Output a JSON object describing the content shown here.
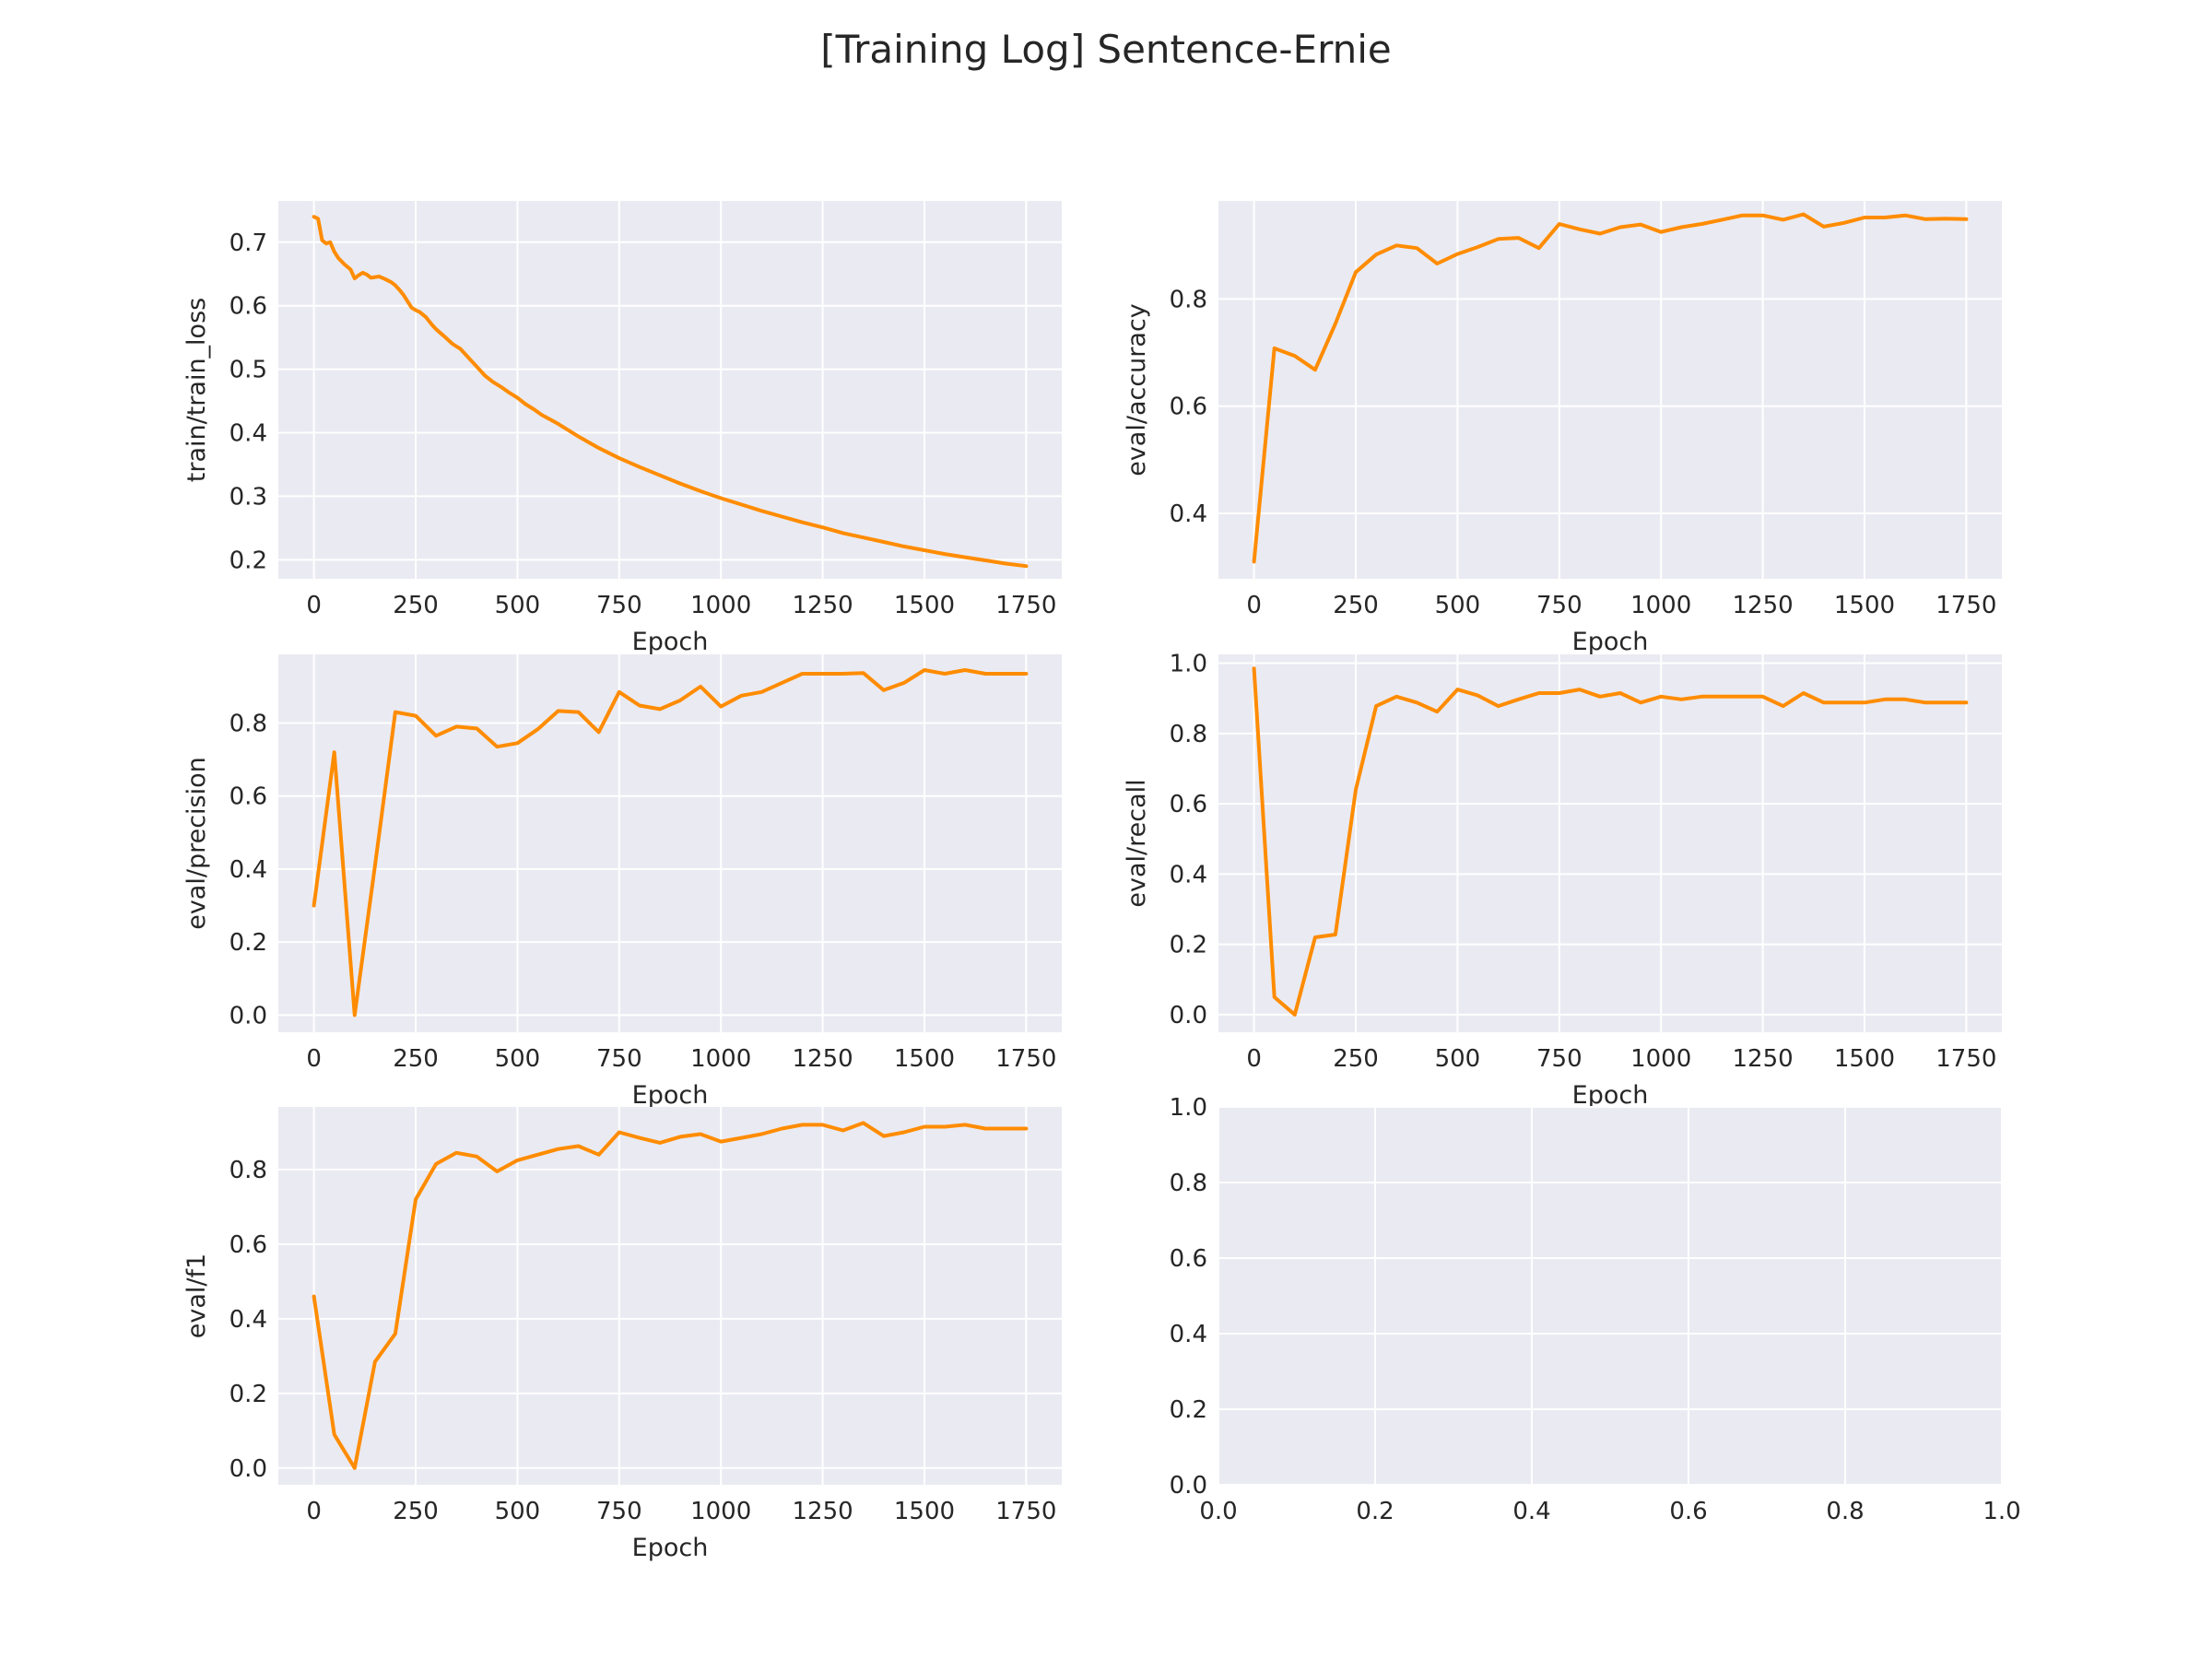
{
  "figure": {
    "title": "[Training Log] Sentence-Ernie"
  },
  "colors": {
    "line": "#ff8c00",
    "panel": "#eaeaf2",
    "grid": "#ffffff",
    "text": "#262626"
  },
  "chart_data": [
    {
      "type": "line",
      "xlabel": "Epoch",
      "ylabel": "train/train_loss",
      "xlim": [
        -87.5,
        1837.5
      ],
      "ylim": [
        0.17,
        0.765
      ],
      "xticks": [
        0,
        250,
        500,
        750,
        1000,
        1250,
        1500,
        1750
      ],
      "yticks": [
        0.2,
        0.3,
        0.4,
        0.5,
        0.6,
        0.7
      ],
      "x": [
        0,
        10,
        20,
        30,
        40,
        50,
        60,
        75,
        90,
        100,
        110,
        120,
        130,
        140,
        150,
        160,
        175,
        190,
        200,
        210,
        220,
        230,
        240,
        250,
        260,
        275,
        290,
        300,
        320,
        340,
        350,
        360,
        380,
        400,
        420,
        440,
        460,
        480,
        500,
        520,
        540,
        560,
        580,
        600,
        650,
        700,
        750,
        800,
        850,
        900,
        950,
        1000,
        1050,
        1100,
        1150,
        1200,
        1250,
        1300,
        1350,
        1400,
        1450,
        1500,
        1550,
        1600,
        1650,
        1700,
        1750
      ],
      "y": [
        0.74,
        0.737,
        0.703,
        0.698,
        0.7,
        0.685,
        0.675,
        0.665,
        0.657,
        0.643,
        0.648,
        0.652,
        0.649,
        0.644,
        0.645,
        0.646,
        0.642,
        0.637,
        0.632,
        0.625,
        0.617,
        0.607,
        0.597,
        0.593,
        0.59,
        0.582,
        0.57,
        0.563,
        0.552,
        0.54,
        0.536,
        0.532,
        0.518,
        0.504,
        0.49,
        0.48,
        0.472,
        0.463,
        0.455,
        0.445,
        0.437,
        0.428,
        0.421,
        0.414,
        0.394,
        0.376,
        0.36,
        0.346,
        0.333,
        0.32,
        0.308,
        0.297,
        0.287,
        0.277,
        0.268,
        0.259,
        0.251,
        0.242,
        0.235,
        0.228,
        0.221,
        0.215,
        0.209,
        0.204,
        0.199,
        0.194,
        0.19
      ]
    },
    {
      "type": "line",
      "xlabel": "Epoch",
      "ylabel": "eval/accuracy",
      "xlim": [
        -87.5,
        1837.5
      ],
      "ylim": [
        0.278,
        0.983
      ],
      "xticks": [
        0,
        250,
        500,
        750,
        1000,
        1250,
        1500,
        1750
      ],
      "yticks": [
        0.4,
        0.6,
        0.8
      ],
      "x": [
        0,
        50,
        100,
        150,
        200,
        250,
        300,
        350,
        400,
        450,
        500,
        550,
        600,
        650,
        700,
        750,
        800,
        850,
        900,
        950,
        1000,
        1050,
        1100,
        1150,
        1200,
        1250,
        1300,
        1350,
        1400,
        1450,
        1500,
        1550,
        1600,
        1650,
        1700,
        1750
      ],
      "y": [
        0.31,
        0.708,
        0.694,
        0.668,
        0.754,
        0.85,
        0.883,
        0.9,
        0.895,
        0.866,
        0.884,
        0.897,
        0.912,
        0.914,
        0.895,
        0.94,
        0.93,
        0.922,
        0.934,
        0.939,
        0.925,
        0.934,
        0.94,
        0.948,
        0.956,
        0.956,
        0.948,
        0.958,
        0.935,
        0.942,
        0.952,
        0.952,
        0.956,
        0.949,
        0.95,
        0.949
      ]
    },
    {
      "type": "line",
      "xlabel": "Epoch",
      "ylabel": "eval/precision",
      "xlim": [
        -87.5,
        1837.5
      ],
      "ylim": [
        -0.047,
        0.988
      ],
      "xticks": [
        0,
        250,
        500,
        750,
        1000,
        1250,
        1500,
        1750
      ],
      "yticks": [
        0.0,
        0.2,
        0.4,
        0.6,
        0.8
      ],
      "x": [
        0,
        50,
        100,
        150,
        200,
        250,
        300,
        350,
        400,
        450,
        500,
        550,
        600,
        650,
        700,
        750,
        800,
        850,
        900,
        950,
        1000,
        1050,
        1100,
        1150,
        1200,
        1250,
        1300,
        1350,
        1400,
        1450,
        1500,
        1550,
        1600,
        1650,
        1700,
        1750
      ],
      "y": [
        0.3,
        0.72,
        0.0,
        0.41,
        0.83,
        0.82,
        0.765,
        0.79,
        0.785,
        0.735,
        0.745,
        0.783,
        0.833,
        0.83,
        0.775,
        0.885,
        0.848,
        0.838,
        0.862,
        0.9,
        0.845,
        0.875,
        0.885,
        0.91,
        0.935,
        0.935,
        0.935,
        0.937,
        0.89,
        0.91,
        0.945,
        0.935,
        0.945,
        0.935,
        0.935,
        0.935
      ]
    },
    {
      "type": "line",
      "xlabel": "Epoch",
      "ylabel": "eval/recall",
      "xlim": [
        -87.5,
        1837.5
      ],
      "ylim": [
        -0.05,
        1.025
      ],
      "xticks": [
        0,
        250,
        500,
        750,
        1000,
        1250,
        1500,
        1750
      ],
      "yticks": [
        0.0,
        0.2,
        0.4,
        0.6,
        0.8,
        1.0
      ],
      "x": [
        0,
        50,
        100,
        150,
        200,
        250,
        300,
        350,
        400,
        450,
        500,
        550,
        600,
        650,
        700,
        750,
        800,
        850,
        900,
        950,
        1000,
        1050,
        1100,
        1150,
        1200,
        1250,
        1300,
        1350,
        1400,
        1450,
        1500,
        1550,
        1600,
        1650,
        1700,
        1750
      ],
      "y": [
        0.985,
        0.05,
        0.0,
        0.22,
        0.228,
        0.64,
        0.878,
        0.905,
        0.888,
        0.862,
        0.925,
        0.908,
        0.878,
        0.897,
        0.915,
        0.915,
        0.925,
        0.905,
        0.915,
        0.888,
        0.905,
        0.897,
        0.905,
        0.905,
        0.905,
        0.905,
        0.878,
        0.915,
        0.888,
        0.888,
        0.888,
        0.897,
        0.897,
        0.888,
        0.888,
        0.888
      ]
    },
    {
      "type": "line",
      "xlabel": "Epoch",
      "ylabel": "eval/f1",
      "xlim": [
        -87.5,
        1837.5
      ],
      "ylim": [
        -0.045,
        0.968
      ],
      "xticks": [
        0,
        250,
        500,
        750,
        1000,
        1250,
        1500,
        1750
      ],
      "yticks": [
        0.0,
        0.2,
        0.4,
        0.6,
        0.8
      ],
      "x": [
        0,
        50,
        100,
        150,
        200,
        250,
        300,
        350,
        400,
        450,
        500,
        550,
        600,
        650,
        700,
        750,
        800,
        850,
        900,
        950,
        1000,
        1050,
        1100,
        1150,
        1200,
        1250,
        1300,
        1350,
        1400,
        1450,
        1500,
        1550,
        1600,
        1650,
        1700,
        1750
      ],
      "y": [
        0.46,
        0.09,
        0.0,
        0.285,
        0.36,
        0.72,
        0.815,
        0.845,
        0.835,
        0.795,
        0.825,
        0.84,
        0.855,
        0.863,
        0.84,
        0.9,
        0.885,
        0.872,
        0.888,
        0.895,
        0.875,
        0.885,
        0.895,
        0.91,
        0.92,
        0.92,
        0.905,
        0.925,
        0.89,
        0.9,
        0.915,
        0.915,
        0.92,
        0.91,
        0.91,
        0.91
      ]
    },
    {
      "type": "line",
      "xlabel": "",
      "ylabel": "",
      "xlim": [
        0.0,
        1.0
      ],
      "ylim": [
        0.0,
        1.0
      ],
      "xticks": [
        0.0,
        0.2,
        0.4,
        0.6,
        0.8,
        1.0
      ],
      "yticks": [
        0.0,
        0.2,
        0.4,
        0.6,
        0.8,
        1.0
      ],
      "x": [],
      "y": []
    }
  ]
}
